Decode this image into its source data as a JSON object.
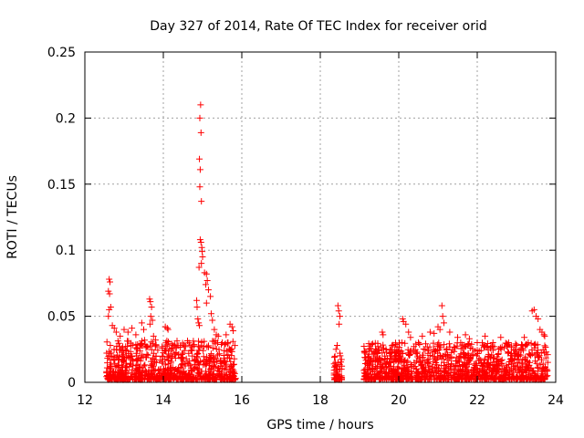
{
  "chart_data": {
    "type": "scatter",
    "title": "Day 327 of 2014, Rate Of TEC Index for receiver orid",
    "xlabel": "GPS time / hours",
    "ylabel": "ROTI / TECUs",
    "xlim": [
      12,
      24
    ],
    "ylim": [
      0,
      0.25
    ],
    "xticks": [
      12,
      14,
      16,
      18,
      20,
      22,
      24
    ],
    "xtick_labels": [
      "12",
      "14",
      "16",
      "18",
      "20",
      "22",
      "24"
    ],
    "yticks": [
      0,
      0.05,
      0.1,
      0.15,
      0.2,
      0.25
    ],
    "ytick_labels": [
      "0",
      "0.05",
      "0.1",
      "0.15",
      "0.2",
      "0.25"
    ],
    "grid": true,
    "marker": "+",
    "series_color": "#ff0000",
    "series": [
      {
        "name": "ROTI",
        "points": [
          [
            12.62,
            0.078
          ],
          [
            12.64,
            0.076
          ],
          [
            12.6,
            0.069
          ],
          [
            12.63,
            0.067
          ],
          [
            12.66,
            0.057
          ],
          [
            12.62,
            0.055
          ],
          [
            12.6,
            0.05
          ],
          [
            12.7,
            0.043
          ],
          [
            12.75,
            0.041
          ],
          [
            12.8,
            0.038
          ],
          [
            12.9,
            0.035
          ],
          [
            13.0,
            0.04
          ],
          [
            13.1,
            0.038
          ],
          [
            13.2,
            0.041
          ],
          [
            13.3,
            0.036
          ],
          [
            13.45,
            0.045
          ],
          [
            13.5,
            0.04
          ],
          [
            13.65,
            0.063
          ],
          [
            13.67,
            0.061
          ],
          [
            13.7,
            0.057
          ],
          [
            13.68,
            0.05
          ],
          [
            13.72,
            0.047
          ],
          [
            13.66,
            0.044
          ],
          [
            13.75,
            0.035
          ],
          [
            13.8,
            0.032
          ],
          [
            14.05,
            0.042
          ],
          [
            14.1,
            0.041
          ],
          [
            14.12,
            0.04
          ],
          [
            14.25,
            0.028
          ],
          [
            14.3,
            0.027
          ],
          [
            14.2,
            0.025
          ],
          [
            14.5,
            0.022
          ],
          [
            14.7,
            0.024
          ],
          [
            14.85,
            0.062
          ],
          [
            14.86,
            0.057
          ],
          [
            14.88,
            0.048
          ],
          [
            14.9,
            0.045
          ],
          [
            14.92,
            0.043
          ],
          [
            14.95,
            0.21
          ],
          [
            14.93,
            0.2
          ],
          [
            14.96,
            0.189
          ],
          [
            14.92,
            0.169
          ],
          [
            14.94,
            0.161
          ],
          [
            14.93,
            0.148
          ],
          [
            14.97,
            0.137
          ],
          [
            14.94,
            0.108
          ],
          [
            14.96,
            0.106
          ],
          [
            14.98,
            0.102
          ],
          [
            14.99,
            0.099
          ],
          [
            15.0,
            0.095
          ],
          [
            14.91,
            0.087
          ],
          [
            14.97,
            0.09
          ],
          [
            15.05,
            0.083
          ],
          [
            15.1,
            0.082
          ],
          [
            15.12,
            0.077
          ],
          [
            15.08,
            0.074
          ],
          [
            15.15,
            0.07
          ],
          [
            15.2,
            0.065
          ],
          [
            15.1,
            0.06
          ],
          [
            15.22,
            0.052
          ],
          [
            15.25,
            0.047
          ],
          [
            15.3,
            0.04
          ],
          [
            15.35,
            0.036
          ],
          [
            15.4,
            0.035
          ],
          [
            15.5,
            0.03
          ],
          [
            15.6,
            0.036
          ],
          [
            15.7,
            0.044
          ],
          [
            15.75,
            0.042
          ],
          [
            15.78,
            0.039
          ],
          [
            18.45,
            0.058
          ],
          [
            18.47,
            0.054
          ],
          [
            18.5,
            0.05
          ],
          [
            18.48,
            0.044
          ],
          [
            18.43,
            0.028
          ],
          [
            18.4,
            0.025
          ],
          [
            18.5,
            0.022
          ],
          [
            18.45,
            0.015
          ],
          [
            18.5,
            0.01
          ],
          [
            18.42,
            0.008
          ],
          [
            18.47,
            0.004
          ],
          [
            19.2,
            0.015
          ],
          [
            19.3,
            0.018
          ],
          [
            19.4,
            0.022
          ],
          [
            19.5,
            0.024
          ],
          [
            19.58,
            0.038
          ],
          [
            19.6,
            0.036
          ],
          [
            19.8,
            0.02
          ],
          [
            20.0,
            0.018
          ],
          [
            20.2,
            0.015
          ],
          [
            20.1,
            0.022
          ],
          [
            20.08,
            0.03
          ],
          [
            20.1,
            0.048
          ],
          [
            20.12,
            0.046
          ],
          [
            20.18,
            0.044
          ],
          [
            20.25,
            0.038
          ],
          [
            20.3,
            0.034
          ],
          [
            20.5,
            0.03
          ],
          [
            20.6,
            0.035
          ],
          [
            20.8,
            0.038
          ],
          [
            20.9,
            0.037
          ],
          [
            21.0,
            0.042
          ],
          [
            21.05,
            0.04
          ],
          [
            21.1,
            0.058
          ],
          [
            21.12,
            0.05
          ],
          [
            21.15,
            0.045
          ],
          [
            21.3,
            0.038
          ],
          [
            21.5,
            0.034
          ],
          [
            21.7,
            0.036
          ],
          [
            21.8,
            0.033
          ],
          [
            22.0,
            0.03
          ],
          [
            22.2,
            0.035
          ],
          [
            22.4,
            0.03
          ],
          [
            22.6,
            0.034
          ],
          [
            22.8,
            0.03
          ],
          [
            23.0,
            0.028
          ],
          [
            23.2,
            0.034
          ],
          [
            23.3,
            0.03
          ],
          [
            23.4,
            0.054
          ],
          [
            23.45,
            0.055
          ],
          [
            23.5,
            0.05
          ],
          [
            23.55,
            0.048
          ],
          [
            23.6,
            0.04
          ],
          [
            23.65,
            0.038
          ],
          [
            23.7,
            0.036
          ],
          [
            23.72,
            0.035
          ]
        ]
      }
    ]
  }
}
